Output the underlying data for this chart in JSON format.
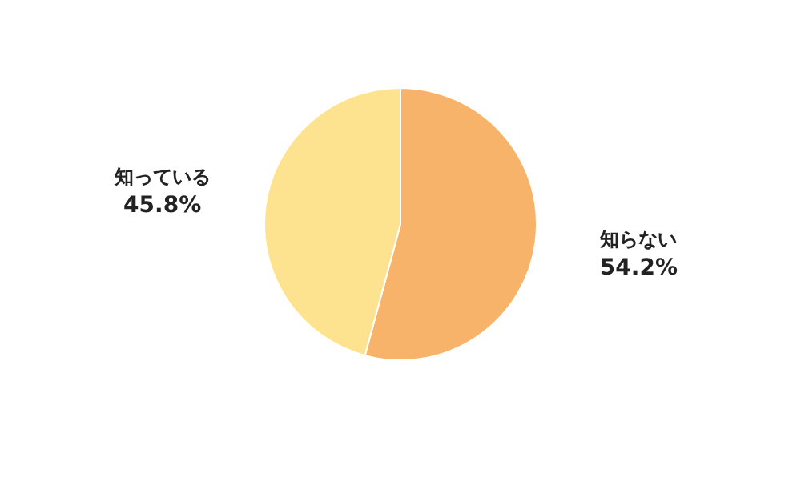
{
  "chart_data": {
    "type": "pie",
    "categories": [
      "知らない",
      "知っている"
    ],
    "values": [
      54.2,
      45.8
    ],
    "colors": [
      "#f8b36a",
      "#fde38f"
    ],
    "value_labels": [
      "54.2%",
      "45.8%"
    ]
  }
}
